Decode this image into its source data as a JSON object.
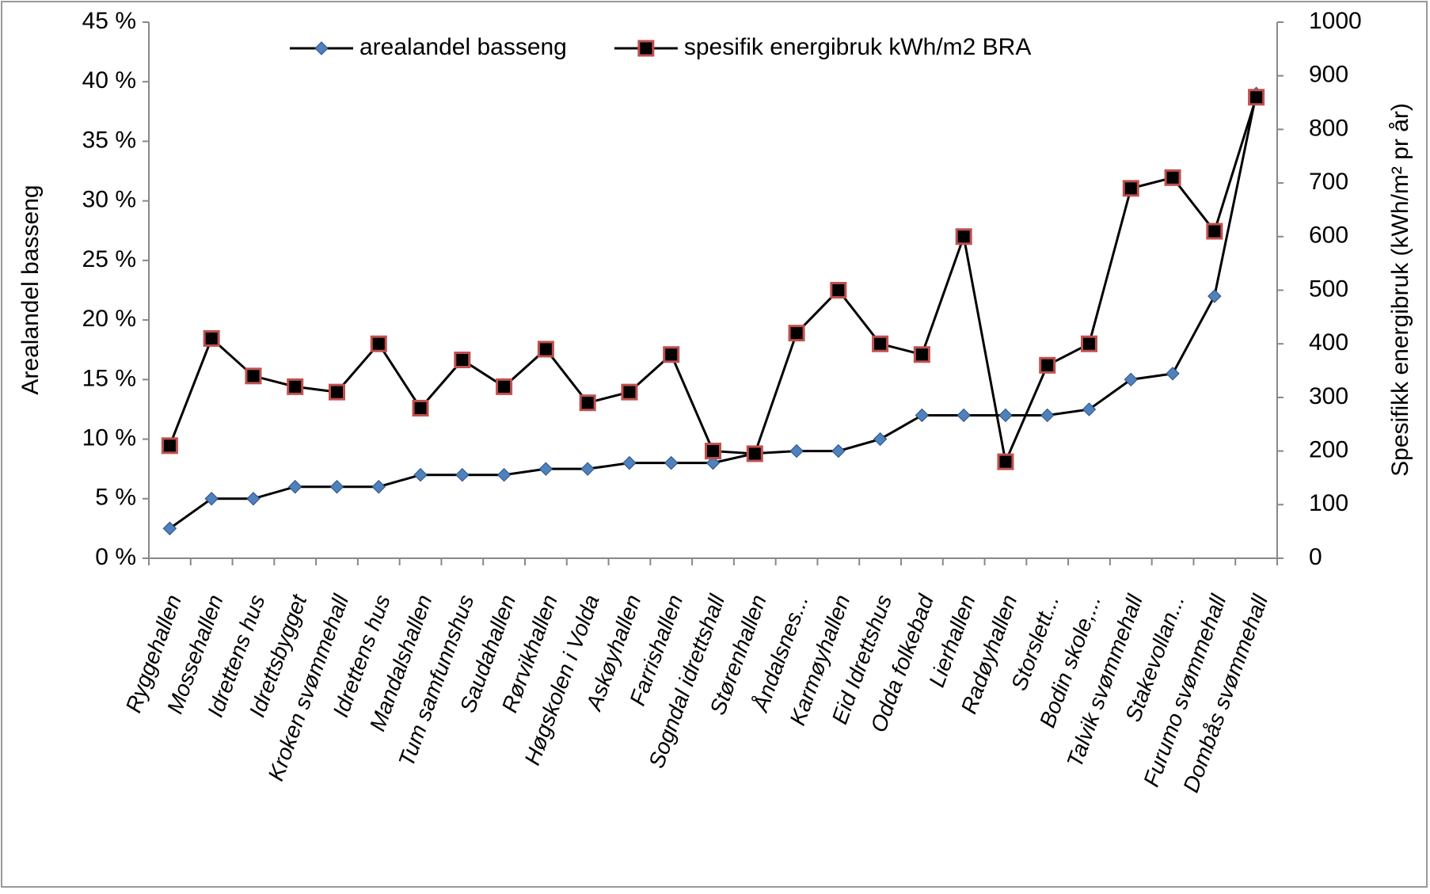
{
  "chart_data": {
    "type": "line",
    "categories": [
      "Ryggehallen",
      "Mossehallen",
      "Idrettens hus",
      "Idrettsbygget",
      "Kroken svømmehall",
      "Idrettens hus",
      "Mandalshallen",
      "Tum samfunnshus",
      "Saudahallen",
      "Rørvikhallen",
      "Høgskolen i Volda",
      "Askøyhallen",
      "Farrishallen",
      "Sogndal idrettshall",
      "Størenhallen",
      "Åndalsnes...",
      "Karmøyhallen",
      "Eid Idrettshus",
      "Odda folkebad",
      "Lierhallen",
      "Radøyhallen",
      "Storslett...",
      "Bodin skole,...",
      "Talvik svømmehall",
      "Stakevollan...",
      "Furumo svømmehall",
      "Dombås svømmehall"
    ],
    "series": [
      {
        "name": "arealandel basseng",
        "color": "#4f81bd",
        "line_color": "#000000",
        "marker": "diamond",
        "values": [
          2.5,
          5,
          5,
          6,
          6,
          6,
          7,
          7,
          7,
          7.5,
          7.5,
          8,
          8,
          8,
          8.8,
          9,
          9,
          10,
          12,
          12,
          12,
          12,
          12.5,
          15,
          15.5,
          22,
          39
        ]
      },
      {
        "name": "spesifik energibruk kWh/m2 BRA",
        "color": "#c0504d",
        "line_color": "#000000",
        "marker": "square",
        "axis": "y2",
        "values": [
          210,
          410,
          340,
          320,
          310,
          400,
          280,
          370,
          320,
          390,
          290,
          310,
          380,
          200,
          195,
          420,
          500,
          400,
          380,
          600,
          180,
          360,
          400,
          690,
          710,
          610,
          860
        ]
      }
    ],
    "ylabel": "Arealandel basseng",
    "y2label": "Spesifikk energibruk (kWh/m² pr år)",
    "ylim": [
      0,
      45
    ],
    "yticks": [
      {
        "value": 0,
        "label": "0 %"
      },
      {
        "value": 5,
        "label": "5 %"
      },
      {
        "value": 10,
        "label": "10 %"
      },
      {
        "value": 15,
        "label": "15 %"
      },
      {
        "value": 20,
        "label": "20 %"
      },
      {
        "value": 25,
        "label": "25 %"
      },
      {
        "value": 30,
        "label": "30 %"
      },
      {
        "value": 35,
        "label": "35 %"
      },
      {
        "value": 40,
        "label": "40 %"
      },
      {
        "value": 45,
        "label": "45 %"
      }
    ],
    "y2lim": [
      0,
      1000
    ],
    "y2ticks": [
      0,
      100,
      200,
      300,
      400,
      500,
      600,
      700,
      800,
      900,
      1000
    ],
    "legend": "top"
  }
}
